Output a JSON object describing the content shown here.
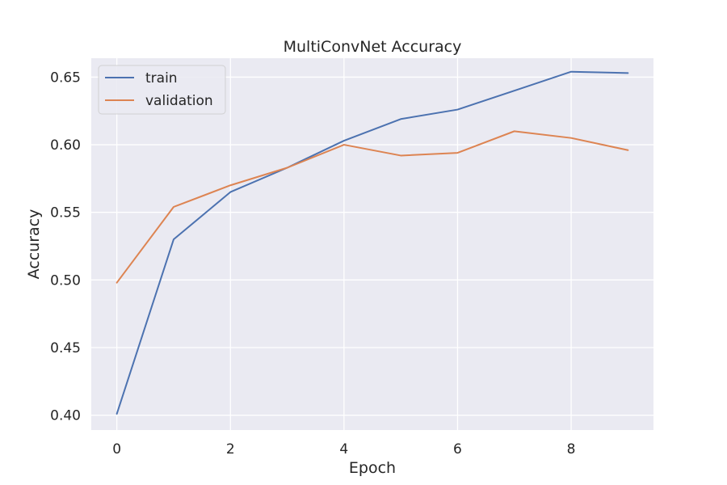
{
  "colors": {
    "background": "#eaeaf2",
    "grid": "#ffffff",
    "text": "#262626"
  },
  "chart_data": {
    "type": "line",
    "title": "MultiConvNet Accuracy",
    "xlabel": "Epoch",
    "ylabel": "Accuracy",
    "xlim": [
      -0.45,
      9.45
    ],
    "ylim": [
      0.389,
      0.664
    ],
    "xticks": [
      0,
      2,
      4,
      6,
      8
    ],
    "xtick_labels": [
      "0",
      "2",
      "4",
      "6",
      "8"
    ],
    "yticks": [
      0.4,
      0.45,
      0.5,
      0.55,
      0.6,
      0.65
    ],
    "ytick_labels": [
      "0.40",
      "0.45",
      "0.50",
      "0.55",
      "0.60",
      "0.65"
    ],
    "grid": true,
    "legend_position": "upper-left",
    "x": [
      0,
      1,
      2,
      3,
      4,
      5,
      6,
      7,
      8,
      9
    ],
    "series": [
      {
        "name": "train",
        "color": "#4c72b0",
        "values": [
          0.401,
          0.53,
          0.565,
          0.583,
          0.603,
          0.619,
          0.626,
          0.64,
          0.654,
          0.653
        ]
      },
      {
        "name": "validation",
        "color": "#dd8452",
        "values": [
          0.498,
          0.554,
          0.57,
          0.583,
          0.6,
          0.592,
          0.594,
          0.61,
          0.605,
          0.596
        ]
      }
    ]
  }
}
